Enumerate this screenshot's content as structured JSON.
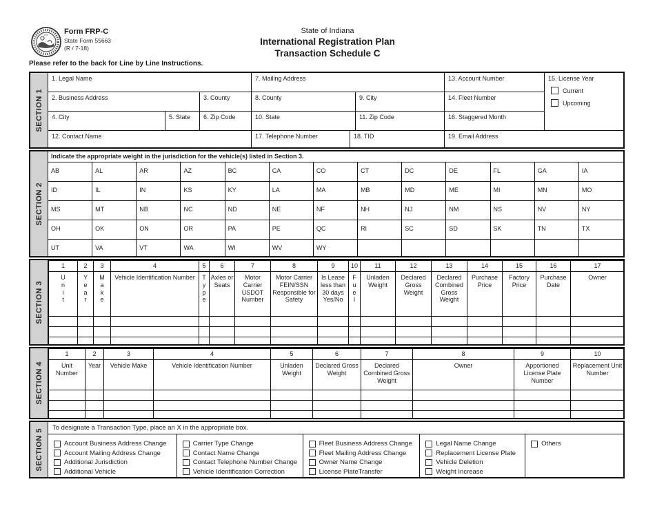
{
  "header": {
    "form_code": "Form FRP-C",
    "state_form": "State Form 55663",
    "revision": "(R / 7-18)",
    "state_title": "State of Indiana",
    "title1": "International Registration Plan",
    "title2": "Transaction Schedule C",
    "note": "Please refer to the back for Line by Line Instructions.",
    "seal_year": "1816"
  },
  "s1": {
    "label": "SECTION 1",
    "legal_name": "1. Legal Name",
    "business_address": "2. Business Address",
    "county3": "3. County",
    "city4": "4. City",
    "state5": "5. State",
    "zip6": "6. Zip Code",
    "mailing_address": "7. Mailing Address",
    "county8": "8. County",
    "city9": "9. City",
    "state10": "10. State",
    "zip11": "11. Zip Code",
    "contact_name": "12. Contact Name",
    "account_number": "13. Account Number",
    "fleet_number": "14. Fleet Number",
    "license_year": "15. License Year",
    "staggered_month": "16. Staggered Month",
    "telephone": "17. Telephone Number",
    "tid": "18. TID",
    "email": "19. Email Address",
    "license_year_options": [
      "Current",
      "Upcoming"
    ]
  },
  "s2": {
    "label": "SECTION 2",
    "instruction": "Indicate the appropriate weight in the jurisdiction for the vehicle(s) listed in Section 3.",
    "rows": [
      [
        "AB",
        "AL",
        "AR",
        "AZ",
        "BC",
        "CA",
        "CO",
        "CT",
        "DC",
        "DE",
        "FL",
        "GA",
        "IA"
      ],
      [
        "ID",
        "IL",
        "IN",
        "KS",
        "KY",
        "LA",
        "MA",
        "MB",
        "MD",
        "ME",
        "MI",
        "MN",
        "MO"
      ],
      [
        "MS",
        "MT",
        "NB",
        "NC",
        "ND",
        "NE",
        "NF",
        "NH",
        "NJ",
        "NM",
        "NS",
        "NV",
        "NY"
      ],
      [
        "OH",
        "OK",
        "ON",
        "OR",
        "PA",
        "PE",
        "QC",
        "RI",
        "SC",
        "SD",
        "SK",
        "TN",
        "TX"
      ],
      [
        "UT",
        "VA",
        "VT",
        "WA",
        "WI",
        "WV",
        "WY",
        "",
        "",
        "",
        "",
        "",
        ""
      ]
    ]
  },
  "s3": {
    "label": "SECTION 3",
    "empty_rows": 3,
    "columns": [
      {
        "n": "1",
        "label": "Unit",
        "stack": true
      },
      {
        "n": "2",
        "label": "Year",
        "stack": true
      },
      {
        "n": "3",
        "label": "Make",
        "stack": true
      },
      {
        "n": "4",
        "label": "Vehicle Identification Number"
      },
      {
        "n": "5",
        "label": "Type",
        "stack": true
      },
      {
        "n": "6",
        "label": "Axles or Seats"
      },
      {
        "n": "7",
        "label": "Motor Carrier USDOT Number"
      },
      {
        "n": "8",
        "label": "Motor Carrier FEIN/SSN Responsible for Safety"
      },
      {
        "n": "9",
        "label": "Is Lease less than 30 days Yes/No"
      },
      {
        "n": "10",
        "label": "Fuel",
        "stack": true
      },
      {
        "n": "11",
        "label": "Unladen Weight"
      },
      {
        "n": "12",
        "label": "Declared Gross Weight"
      },
      {
        "n": "13",
        "label": "Declared Combined Gross Weight"
      },
      {
        "n": "14",
        "label": "Purchase Price"
      },
      {
        "n": "15",
        "label": "Factory Price"
      },
      {
        "n": "16",
        "label": "Purchase Date"
      },
      {
        "n": "17",
        "label": "Owner"
      }
    ]
  },
  "s4": {
    "label": "SECTION 4",
    "empty_rows": 3,
    "columns": [
      {
        "n": "1",
        "label": "Unit Number"
      },
      {
        "n": "2",
        "label": "Year"
      },
      {
        "n": "3",
        "label": "Vehicle Make"
      },
      {
        "n": "4",
        "label": "Vehicle Identification Number"
      },
      {
        "n": "5",
        "label": "Unladen Weight"
      },
      {
        "n": "6",
        "label": "Declared Gross Weight"
      },
      {
        "n": "7",
        "label": "Declared Combined Gross Weight"
      },
      {
        "n": "8",
        "label": "Owner"
      },
      {
        "n": "9",
        "label": "Apportioned License Plate Number"
      },
      {
        "n": "10",
        "label": "Replacement Unit Number"
      }
    ]
  },
  "s5": {
    "label": "SECTION 5",
    "instruction": "To designate a Transaction Type, place an X in the appropriate box.",
    "groups": [
      [
        "Account Business Address Change",
        "Account Mailing Address Change",
        "Additional Jurisdiction",
        "Additional Vehicle"
      ],
      [
        "Carrier Type Change",
        "Contact Name Change",
        "Contact Telephone Number Change",
        "Vehicle Identification Correction"
      ],
      [
        "Fleet Business Address Change",
        "Fleet Mailing Address Change",
        "Owner Name Change",
        "License PlateTransfer"
      ],
      [
        "Legal Name Change",
        "Replacement License Plate",
        "Vehicle Deletion",
        "Weight Increase"
      ],
      [
        "Others"
      ]
    ]
  }
}
